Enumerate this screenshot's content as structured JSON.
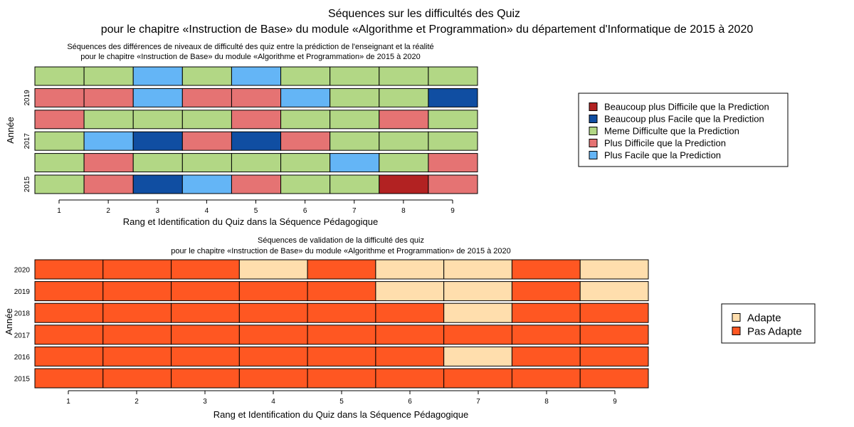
{
  "figure": {
    "title_line1": "Séquences sur les difficultés des Quiz",
    "title_line2": "pour le chapitre «Instruction de Base» du module «Algorithme et Programmation» du département d'Informatique de 2015 à 2020"
  },
  "chart_data": [
    {
      "type": "heatmap",
      "title_line1": "Séquences des différences de niveaux de difficulté des quiz entre la prédiction de l'enseignant et la réalité",
      "title_line2": "pour le chapitre «Instruction de Base» du module «Algorithme et Programmation» de 2015 à 2020",
      "xlabel": "Rang et Identification du Quiz dans la Séquence Pédagogique",
      "ylabel": "Année",
      "x": [
        1,
        2,
        3,
        4,
        5,
        6,
        7,
        8,
        9
      ],
      "x_tick_labels": [
        "1",
        "2",
        "3",
        "4",
        "5",
        "6",
        "7",
        "8",
        "9"
      ],
      "rows": [
        2015,
        2016,
        2017,
        2018,
        2019,
        2020
      ],
      "y_tick_labels": [
        "2015",
        "",
        "2017",
        "",
        "2019",
        ""
      ],
      "legend": {
        "position": "right",
        "entries": [
          {
            "key": "BPD",
            "label": "Beaucoup plus Difficile que la Prediction",
            "color": "#b22222"
          },
          {
            "key": "BPF",
            "label": "Beaucoup plus Facile que la Prediction",
            "color": "#104ea2"
          },
          {
            "key": "MD",
            "label": "Meme Difficulte que la Prediction",
            "color": "#b2d785"
          },
          {
            "key": "PD",
            "label": "Plus Difficile que la Prediction",
            "color": "#e57373"
          },
          {
            "key": "PF",
            "label": "Plus Facile que la Prediction",
            "color": "#64b5f6"
          }
        ]
      },
      "values": [
        [
          "MD",
          "PD",
          "BPF",
          "PF",
          "PD",
          "MD",
          "MD",
          "BPD",
          "PD"
        ],
        [
          "MD",
          "PD",
          "MD",
          "MD",
          "MD",
          "MD",
          "PF",
          "MD",
          "PD"
        ],
        [
          "MD",
          "PF",
          "BPF",
          "PD",
          "BPF",
          "PD",
          "MD",
          "MD",
          "MD"
        ],
        [
          "PD",
          "MD",
          "MD",
          "MD",
          "PD",
          "MD",
          "MD",
          "PD",
          "MD"
        ],
        [
          "PD",
          "PD",
          "PF",
          "PD",
          "PD",
          "PF",
          "MD",
          "MD",
          "BPF"
        ],
        [
          "MD",
          "MD",
          "PF",
          "MD",
          "PF",
          "MD",
          "MD",
          "MD",
          "MD"
        ]
      ]
    },
    {
      "type": "heatmap",
      "title_line1": "Séquences de validation de la difficulté des quiz",
      "title_line2": "pour le chapitre «Instruction de Base» du module «Algorithme et Programmation» de 2015 à 2020",
      "xlabel": "Rang et Identification du Quiz dans la Séquence Pédagogique",
      "ylabel": "Année",
      "x": [
        1,
        2,
        3,
        4,
        5,
        6,
        7,
        8,
        9
      ],
      "x_tick_labels": [
        "1",
        "2",
        "3",
        "4",
        "5",
        "6",
        "7",
        "8",
        "9"
      ],
      "rows": [
        2015,
        2016,
        2017,
        2018,
        2019,
        2020
      ],
      "y_tick_labels": [
        "2015",
        "2016",
        "2017",
        "2018",
        "2019",
        "2020"
      ],
      "legend": {
        "position": "right",
        "entries": [
          {
            "key": "A",
            "label": "Adapte",
            "color": "#ffdead"
          },
          {
            "key": "PA",
            "label": "Pas Adapte",
            "color": "#ff5722"
          }
        ]
      },
      "values": [
        [
          "PA",
          "PA",
          "PA",
          "PA",
          "PA",
          "PA",
          "PA",
          "PA",
          "PA"
        ],
        [
          "PA",
          "PA",
          "PA",
          "PA",
          "PA",
          "PA",
          "A",
          "PA",
          "PA"
        ],
        [
          "PA",
          "PA",
          "PA",
          "PA",
          "PA",
          "PA",
          "PA",
          "PA",
          "PA"
        ],
        [
          "PA",
          "PA",
          "PA",
          "PA",
          "PA",
          "PA",
          "A",
          "PA",
          "PA"
        ],
        [
          "PA",
          "PA",
          "PA",
          "PA",
          "PA",
          "A",
          "A",
          "PA",
          "A"
        ],
        [
          "PA",
          "PA",
          "PA",
          "A",
          "PA",
          "A",
          "A",
          "PA",
          "A"
        ]
      ]
    }
  ]
}
